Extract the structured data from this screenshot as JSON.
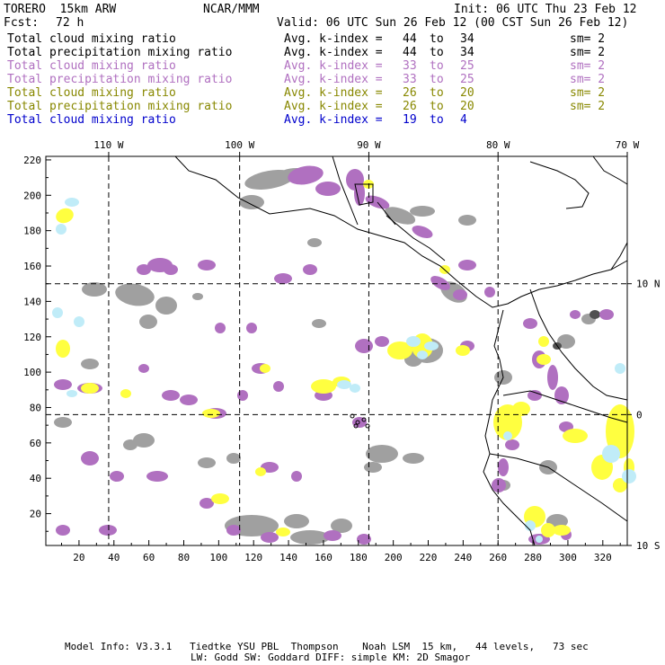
{
  "header": {
    "model": "TORERO  15km ARW",
    "org": "NCAR/MMM",
    "init": "Init: 06 UTC Thu 23 Feb 12",
    "fcst_label": "Fcst:",
    "fcst_value": "72 h",
    "valid": "Valid: 06 UTC Sun 26 Feb 12 (00 CST Sun 26 Feb 12)"
  },
  "legend": [
    {
      "field": "Total cloud mixing ratio",
      "avg": "Avg. k-index =",
      "k1": "44",
      "to": "to",
      "k2": "34",
      "sm": "sm= 2",
      "color": "#000000"
    },
    {
      "field": "Total precipitation mixing ratio",
      "avg": "Avg. k-index =",
      "k1": "44",
      "to": "to",
      "k2": "34",
      "sm": "sm= 2",
      "color": "#000000"
    },
    {
      "field": "Total cloud mixing ratio",
      "avg": "Avg. k-index =",
      "k1": "33",
      "to": "to",
      "k2": "25",
      "sm": "sm= 2",
      "color": "#b070c0"
    },
    {
      "field": "Total precipitation mixing ratio",
      "avg": "Avg. k-index =",
      "k1": "33",
      "to": "to",
      "k2": "25",
      "sm": "sm= 2",
      "color": "#b070c0"
    },
    {
      "field": "Total cloud mixing ratio",
      "avg": "Avg. k-index =",
      "k1": "26",
      "to": "to",
      "k2": "20",
      "sm": "sm= 2",
      "color": "#888800"
    },
    {
      "field": "Total precipitation mixing ratio",
      "avg": "Avg. k-index =",
      "k1": "26",
      "to": "to",
      "k2": "20",
      "sm": "sm= 2",
      "color": "#888800"
    },
    {
      "field": "Total cloud mixing ratio",
      "avg": "Avg. k-index =",
      "k1": "19",
      "to": "to",
      "k2": "4",
      "sm": "",
      "color": "#0000cc"
    }
  ],
  "map": {
    "top_lon_labels": [
      {
        "text": "110 W",
        "gx": 37
      },
      {
        "text": "100 W",
        "gx": 112
      },
      {
        "text": "90 W",
        "gx": 186
      },
      {
        "text": "80 W",
        "gx": 260
      },
      {
        "text": "70 W",
        "gx": 334
      }
    ],
    "right_lat_labels": [
      {
        "text": "10 N",
        "gy": 150
      },
      {
        "text": "0",
        "gy": 76
      },
      {
        "text": "10 S",
        "gy": 2
      }
    ],
    "grid_x_ticks": [
      20,
      40,
      60,
      80,
      100,
      120,
      140,
      160,
      180,
      200,
      220,
      240,
      260,
      280,
      300,
      320
    ],
    "grid_y_ticks": [
      20,
      40,
      60,
      80,
      100,
      120,
      140,
      160,
      180,
      200,
      220
    ],
    "grid_x_range": [
      1,
      334
    ],
    "grid_y_range": [
      2,
      222
    ],
    "meridians_gx": [
      37,
      112,
      186,
      260
    ],
    "parallels_gy": [
      150,
      76
    ],
    "colors": {
      "gray": "#a0a0a0",
      "purple": "#b070c0",
      "yellow": "#ffff40",
      "cyan": "#c0ecf8",
      "dark": "#505050"
    }
  },
  "footer": {
    "line1": "Model Info: V3.3.1   Tiedtke YSU PBL  Thompson    Noah LSM  15 km,   44 levels,   73 sec",
    "line2": "LW: Godd SW: Goddard DIFF: simple KM: 2D Smagor"
  }
}
